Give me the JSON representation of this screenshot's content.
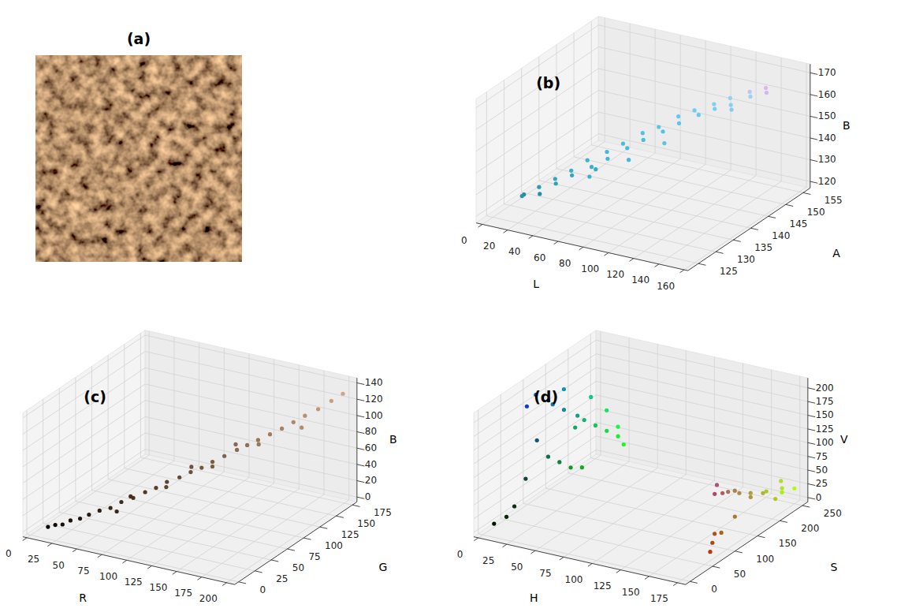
{
  "image_panel": {
    "label": "(a)"
  },
  "chart_data": [
    {
      "type": "scatter3d",
      "title": "(b)",
      "x_label": "L",
      "y_label": "A",
      "z_label": "B",
      "grid": true,
      "xlim": [
        -5,
        163
      ],
      "xticks": [
        0,
        20,
        40,
        60,
        80,
        100,
        120,
        140,
        160
      ],
      "ylim": [
        122,
        157
      ],
      "yticks": [
        125,
        130,
        135,
        140,
        145,
        150,
        155
      ],
      "zlim": [
        117,
        174
      ],
      "zticks": [
        120,
        130,
        140,
        150,
        160,
        170
      ],
      "x": [
        8,
        12,
        15,
        20,
        25,
        30,
        35,
        40,
        45,
        50,
        55,
        60,
        65,
        70,
        75,
        80,
        85,
        90,
        95,
        100,
        105,
        110,
        115,
        120,
        125,
        130,
        135,
        140,
        145,
        150,
        60,
        80,
        100,
        40,
        120
      ],
      "y": [
        131,
        129,
        133,
        131,
        134,
        132,
        135,
        133,
        137,
        134,
        138,
        136,
        140,
        137,
        141,
        139,
        143,
        140,
        144,
        142,
        146,
        143,
        147,
        145,
        148,
        146,
        150,
        148,
        151,
        149,
        131,
        135,
        138,
        140,
        150
      ],
      "z": [
        122,
        124,
        121,
        127,
        126,
        131,
        130,
        135,
        133,
        140,
        137,
        143,
        141,
        147,
        145,
        151,
        148,
        154,
        152,
        158,
        155,
        161,
        158,
        163,
        160,
        166,
        163,
        168,
        165,
        170,
        137,
        143,
        150,
        128,
        155
      ],
      "colors": [
        "#1f8ea0",
        "#2494a8",
        "#2090a5",
        "#2a9cb4",
        "#2ca0b8",
        "#30a6c0",
        "#32a8c4",
        "#36aecc",
        "#38b0cf",
        "#3cb4d4",
        "#3eb6d6",
        "#42b8da",
        "#44badc",
        "#48bce0",
        "#4abee2",
        "#50c0e4",
        "#52c2e6",
        "#58c4e8",
        "#5cc6ea",
        "#62c8ec",
        "#66caee",
        "#70ccf0",
        "#74cef0",
        "#7ed0f2",
        "#86d0f2",
        "#90d2f4",
        "#a0d0f4",
        "#b8c8f0",
        "#d0b8ee",
        "#e0b4ec",
        "#3ab0d0",
        "#46b8dc",
        "#5cc2e6",
        "#34aac8",
        "#80ccee"
      ]
    },
    {
      "type": "scatter3d",
      "title": "(c)",
      "x_label": "R",
      "y_label": "G",
      "z_label": "B",
      "grid": true,
      "xlim": [
        -4,
        208
      ],
      "xticks": [
        0,
        25,
        50,
        75,
        100,
        125,
        150,
        175,
        200
      ],
      "ylim": [
        -6,
        182
      ],
      "yticks": [
        0,
        25,
        50,
        75,
        100,
        125,
        150,
        175
      ],
      "zlim": [
        -6,
        146
      ],
      "zticks": [
        0,
        20,
        40,
        60,
        80,
        100,
        120,
        140
      ],
      "x": [
        12,
        18,
        22,
        28,
        35,
        40,
        48,
        55,
        62,
        70,
        78,
        85,
        92,
        100,
        108,
        115,
        122,
        130,
        138,
        145,
        152,
        160,
        168,
        175,
        182,
        190,
        198,
        205,
        60,
        90,
        120,
        150,
        180,
        70,
        110,
        140
      ],
      "y": [
        8,
        10,
        15,
        18,
        22,
        28,
        32,
        38,
        44,
        50,
        56,
        62,
        68,
        75,
        80,
        86,
        92,
        98,
        105,
        110,
        116,
        122,
        128,
        135,
        142,
        150,
        158,
        165,
        40,
        70,
        95,
        120,
        140,
        46,
        78,
        100
      ],
      "z": [
        3,
        6,
        5,
        10,
        12,
        15,
        20,
        22,
        28,
        32,
        38,
        42,
        48,
        52,
        58,
        62,
        68,
        74,
        80,
        85,
        90,
        96,
        102,
        108,
        114,
        120,
        128,
        135,
        18,
        40,
        60,
        82,
        100,
        36,
        66,
        90
      ],
      "colors": [
        "#0c0803",
        "#120a06",
        "#160f05",
        "#1c120a",
        "#23160c",
        "#281c0f",
        "#302014",
        "#372616",
        "#3e2c1c",
        "#463220",
        "#4e3826",
        "#553e2a",
        "#5c4430",
        "#644b34",
        "#6c503a",
        "#73563e",
        "#7a5c44",
        "#82624a",
        "#8a6950",
        "#916e55",
        "#98745a",
        "#a07a60",
        "#a88066",
        "#af876c",
        "#b68e72",
        "#be9678",
        "#c69e80",
        "#cda587",
        "#3c2812",
        "#5a4628",
        "#785f3c",
        "#967852",
        "#b48c64",
        "#462e24",
        "#6e4e42",
        "#8c645a"
      ]
    },
    {
      "type": "scatter3d",
      "title": "(d)",
      "x_label": "H",
      "y_label": "S",
      "z_label": "V",
      "grid": true,
      "xlim": [
        -4,
        182
      ],
      "xticks": [
        0,
        25,
        50,
        75,
        100,
        125,
        150,
        175
      ],
      "ylim": [
        -10,
        262
      ],
      "yticks": [
        0,
        50,
        100,
        150,
        200,
        250
      ],
      "zlim": [
        -8,
        218
      ],
      "zticks": [
        0,
        25,
        50,
        75,
        100,
        125,
        150,
        175,
        200
      ],
      "x": [
        15,
        15,
        18,
        14,
        16,
        20,
        18,
        20,
        22,
        24,
        25,
        12,
        14,
        16,
        18,
        20,
        10,
        8,
        5,
        16,
        18,
        20,
        12,
        14,
        2,
        175,
        172,
        170,
        175,
        172,
        170,
        176,
        174,
        172,
        175,
        172,
        170,
        176,
        174,
        170,
        178,
        168,
        175,
        176,
        174
      ],
      "y": [
        60,
        80,
        100,
        120,
        140,
        160,
        180,
        200,
        220,
        240,
        250,
        90,
        110,
        130,
        150,
        170,
        70,
        50,
        40,
        200,
        230,
        250,
        150,
        170,
        20,
        250,
        230,
        200,
        180,
        160,
        140,
        60,
        70,
        80,
        90,
        110,
        130,
        150,
        120,
        100,
        200,
        240,
        220,
        70,
        80
      ],
      "z": [
        200,
        210,
        190,
        170,
        150,
        130,
        110,
        90,
        70,
        50,
        30,
        120,
        80,
        60,
        40,
        30,
        60,
        20,
        5,
        140,
        100,
        60,
        180,
        100,
        2,
        20,
        30,
        40,
        50,
        60,
        70,
        10,
        20,
        30,
        100,
        90,
        80,
        60,
        40,
        20,
        30,
        15,
        50,
        110,
        120
      ],
      "colors": [
        "#0f3cc8",
        "#0f50d2",
        "#1264be",
        "#0e78aa",
        "#108c96",
        "#14a082",
        "#12b46e",
        "#14c85a",
        "#16dc46",
        "#18f032",
        "#19fa1e",
        "#0c5a78",
        "#0e6e50",
        "#10823c",
        "#129628",
        "#14aa1e",
        "#0a463c",
        "#083214",
        "#052805",
        "#10c88c",
        "#12e664",
        "#14fa3c",
        "#0c96b4",
        "#0eaa64",
        "#021402",
        "#affa14",
        "#ace61e",
        "#aac828",
        "#afb432",
        "#aca03c",
        "#aa8c46",
        "#b03c0a",
        "#ae4614",
        "#ac501e",
        "#af5a64",
        "#ac6e5a",
        "#aa8250",
        "#b0963c",
        "#ae7828",
        "#aa6414",
        "#b2c81e",
        "#a8f00f",
        "#afdc32",
        "#b0466e",
        "#ae5078"
      ]
    }
  ]
}
